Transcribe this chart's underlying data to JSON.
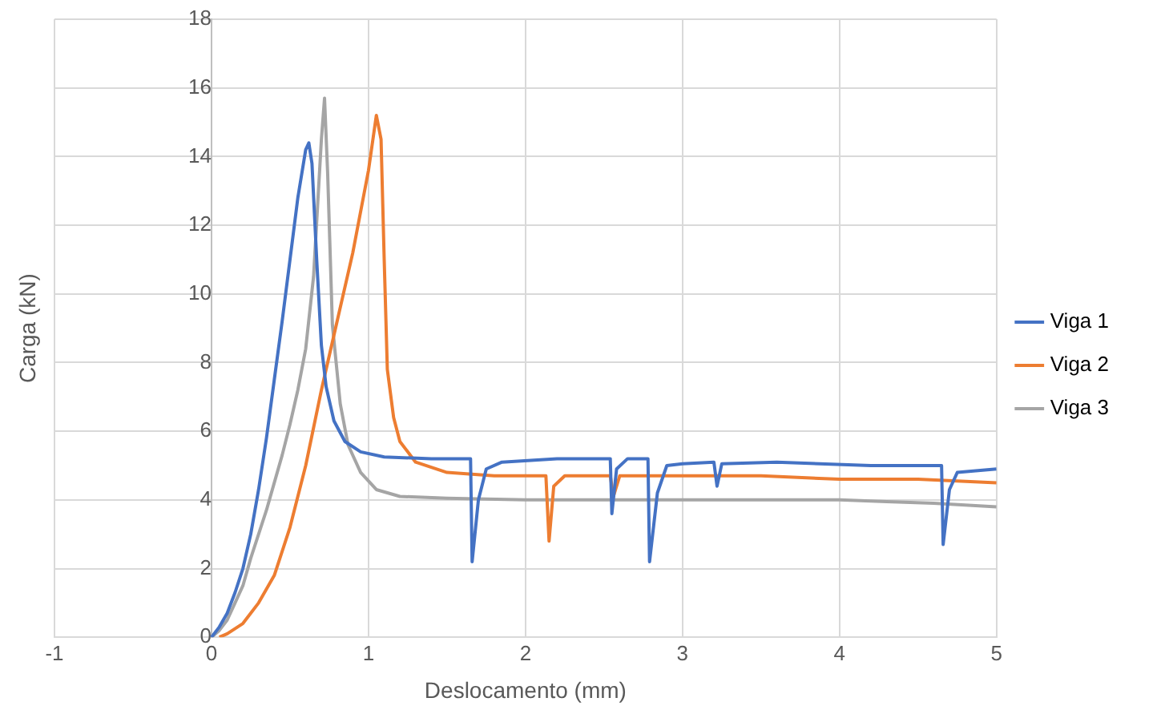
{
  "chart_data": {
    "type": "line",
    "xlabel": "Deslocamento (mm)",
    "ylabel": "Carga (kN)",
    "xlim": [
      -1,
      5
    ],
    "xticks": [
      -1,
      0,
      1,
      2,
      3,
      4,
      5
    ],
    "ylim": [
      0,
      18
    ],
    "yticks": [
      0,
      2,
      4,
      6,
      8,
      10,
      12,
      14,
      16,
      18
    ],
    "grid": true,
    "legend": "right",
    "marker": "none",
    "line_style": "solid",
    "series": [
      {
        "name": "Viga 1",
        "color": "#4472c4",
        "x": [
          0,
          0.05,
          0.1,
          0.15,
          0.2,
          0.25,
          0.3,
          0.35,
          0.4,
          0.45,
          0.5,
          0.55,
          0.6,
          0.62,
          0.64,
          0.67,
          0.7,
          0.73,
          0.78,
          0.85,
          0.95,
          1.1,
          1.4,
          1.65,
          1.66,
          1.7,
          1.75,
          1.85,
          2.2,
          2.54,
          2.55,
          2.58,
          2.65,
          2.78,
          2.79,
          2.84,
          2.9,
          3.0,
          3.2,
          3.22,
          3.25,
          3.6,
          4.2,
          4.65,
          4.66,
          4.7,
          4.75,
          5.0
        ],
        "values": [
          0,
          0.3,
          0.7,
          1.3,
          2.0,
          3.0,
          4.3,
          5.8,
          7.5,
          9.2,
          11.0,
          12.8,
          14.2,
          14.4,
          13.8,
          11.0,
          8.5,
          7.3,
          6.3,
          5.7,
          5.4,
          5.25,
          5.2,
          5.2,
          2.2,
          4.0,
          4.9,
          5.1,
          5.2,
          5.2,
          3.6,
          4.9,
          5.2,
          5.2,
          2.2,
          4.2,
          5.0,
          5.05,
          5.1,
          4.4,
          5.05,
          5.1,
          5.0,
          5.0,
          2.7,
          4.3,
          4.8,
          4.9
        ]
      },
      {
        "name": "Viga 2",
        "color": "#ed7d31",
        "x": [
          0.05,
          0.1,
          0.2,
          0.3,
          0.4,
          0.5,
          0.6,
          0.7,
          0.8,
          0.9,
          1.0,
          1.05,
          1.08,
          1.1,
          1.12,
          1.16,
          1.2,
          1.3,
          1.5,
          1.8,
          2.13,
          2.15,
          2.18,
          2.25,
          2.54,
          2.56,
          2.6,
          3.0,
          3.5,
          4.0,
          4.5,
          5.0
        ],
        "values": [
          0,
          0.1,
          0.4,
          1.0,
          1.8,
          3.2,
          5.0,
          7.2,
          9.2,
          11.2,
          13.6,
          15.2,
          14.5,
          11.0,
          7.8,
          6.4,
          5.7,
          5.1,
          4.8,
          4.7,
          4.7,
          2.8,
          4.4,
          4.7,
          4.7,
          4.1,
          4.7,
          4.7,
          4.7,
          4.6,
          4.6,
          4.5
        ]
      },
      {
        "name": "Viga 3",
        "color": "#a5a5a5",
        "x": [
          0,
          0.05,
          0.1,
          0.15,
          0.2,
          0.25,
          0.3,
          0.35,
          0.4,
          0.45,
          0.5,
          0.55,
          0.6,
          0.65,
          0.7,
          0.72,
          0.74,
          0.77,
          0.82,
          0.87,
          0.95,
          1.05,
          1.2,
          1.5,
          2.0,
          3.0,
          3.5,
          4.0,
          4.3,
          4.6,
          5.0
        ],
        "values": [
          0,
          0.2,
          0.5,
          1.0,
          1.5,
          2.3,
          3.0,
          3.7,
          4.5,
          5.3,
          6.2,
          7.2,
          8.4,
          10.5,
          14.5,
          15.7,
          13.5,
          9.1,
          6.8,
          5.6,
          4.8,
          4.3,
          4.1,
          4.05,
          4.0,
          4.0,
          4.0,
          4.0,
          3.95,
          3.9,
          3.8
        ]
      }
    ]
  }
}
